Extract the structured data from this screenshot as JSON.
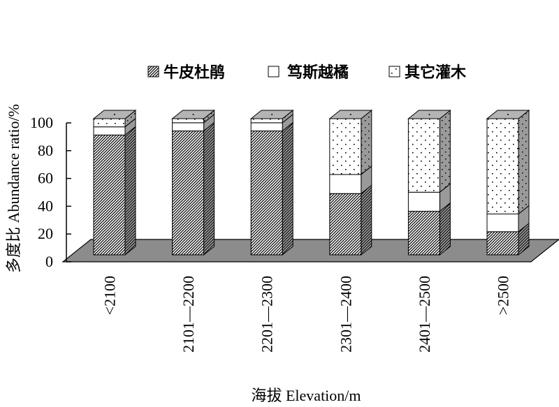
{
  "chart_data": {
    "type": "bar",
    "stacked": true,
    "three_d": true,
    "categories": [
      "<2100",
      "2101—2200",
      "2201—2300",
      "2301—2400",
      "2401—2500",
      ">2500"
    ],
    "series": [
      {
        "name": "牛皮杜鹃",
        "pattern": "diagonal-hatch",
        "values": [
          88,
          91,
          91,
          45,
          32,
          17
        ]
      },
      {
        "name": "笃斯越橘",
        "pattern": "white",
        "values": [
          6,
          6,
          6,
          14,
          14,
          13
        ]
      },
      {
        "name": "其它灌木",
        "pattern": "dots",
        "values": [
          6,
          3,
          3,
          41,
          54,
          70
        ]
      }
    ],
    "ylabel": "多度比 Abundance ratio/%",
    "xlabel": "海拔 Elevation/m",
    "ylim": [
      0,
      100
    ],
    "yticks": [
      0,
      20,
      40,
      60,
      80,
      100
    ],
    "legend_position": "top",
    "grid": false,
    "colors": {
      "floor": "#8c8c8c",
      "side": "#8c8c8c",
      "top": "#b4b4b4",
      "hatch": "#000000"
    }
  }
}
